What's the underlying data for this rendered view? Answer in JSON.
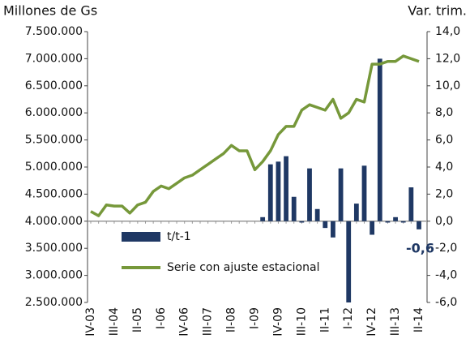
{
  "chart_data": {
    "type": "combo",
    "y_title": "Millones de Gs",
    "y2_title": "Var. trim.",
    "categories": [
      "IV-03",
      null,
      null,
      "III-04",
      null,
      null,
      "II-05",
      null,
      null,
      "I-06",
      null,
      null,
      "IV-06",
      null,
      null,
      "III-07",
      null,
      null,
      "II-08",
      null,
      null,
      "I-09",
      null,
      null,
      "IV-09",
      null,
      null,
      "III-10",
      null,
      null,
      "II-11",
      null,
      null,
      "I-12",
      null,
      null,
      "IV-12",
      null,
      null,
      "III-13",
      null,
      null,
      "II-14"
    ],
    "series": [
      {
        "name": "t/t-1",
        "type": "bar",
        "axis": "y2",
        "color": "#1f3864",
        "values": [
          null,
          null,
          null,
          null,
          null,
          null,
          null,
          null,
          null,
          null,
          null,
          null,
          null,
          null,
          null,
          null,
          null,
          null,
          null,
          null,
          null,
          null,
          0.3,
          4.2,
          4.4,
          4.8,
          1.8,
          -0.1,
          3.9,
          0.9,
          -0.5,
          -1.2,
          3.9,
          -6.0,
          1.3,
          4.1,
          -1.0,
          12.0,
          -0.1,
          0.3,
          -0.1,
          2.5,
          -0.6
        ]
      },
      {
        "name": "Serie con ajuste estacional",
        "type": "line",
        "color": "#76983a",
        "values": [
          4180000,
          4100000,
          4300000,
          4280000,
          4280000,
          4150000,
          4300000,
          4350000,
          4550000,
          4650000,
          4600000,
          4700000,
          4800000,
          4850000,
          4950000,
          5050000,
          5150000,
          5250000,
          5400000,
          5300000,
          5300000,
          4950000,
          5100000,
          5300000,
          5600000,
          5750000,
          5750000,
          6050000,
          6150000,
          6100000,
          6050000,
          6250000,
          5900000,
          6000000,
          6250000,
          6200000,
          6900000,
          6900000,
          6950000,
          6950000,
          7050000,
          7000000,
          6950000
        ]
      }
    ],
    "annotation": "-0,6",
    "ylim": [
      2500000,
      7500000
    ],
    "yticks": [
      {
        "value": 2500000,
        "label": "2.500.000"
      },
      {
        "value": 3000000,
        "label": "3.000.000"
      },
      {
        "value": 3500000,
        "label": "3.500.000"
      },
      {
        "value": 4000000,
        "label": "4.000.000"
      },
      {
        "value": 4500000,
        "label": "4.500.000"
      },
      {
        "value": 5000000,
        "label": "5.000.000"
      },
      {
        "value": 5500000,
        "label": "5.500.000"
      },
      {
        "value": 6000000,
        "label": "6.000.000"
      },
      {
        "value": 6500000,
        "label": "6.500.000"
      },
      {
        "value": 7000000,
        "label": "7.000.000"
      },
      {
        "value": 7500000,
        "label": "7.500.000"
      }
    ],
    "y2lim": [
      -6,
      14
    ],
    "y2ticks": [
      {
        "value": -6,
        "label": "-6,0"
      },
      {
        "value": -4,
        "label": "-4,0"
      },
      {
        "value": -2,
        "label": "-2,0"
      },
      {
        "value": 0,
        "label": "0,0"
      },
      {
        "value": 2,
        "label": "2,0"
      },
      {
        "value": 4,
        "label": "4,0"
      },
      {
        "value": 6,
        "label": "6,0"
      },
      {
        "value": 8,
        "label": "8,0"
      },
      {
        "value": 10,
        "label": "10,0"
      },
      {
        "value": 12,
        "label": "12,0"
      },
      {
        "value": 14,
        "label": "14,0"
      }
    ],
    "grid": false
  }
}
